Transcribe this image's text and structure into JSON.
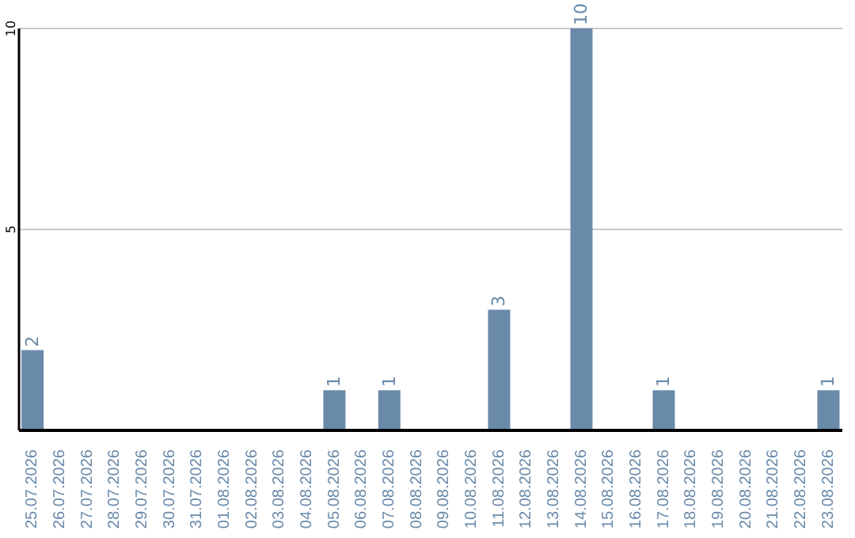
{
  "chart_data": {
    "type": "bar",
    "categories": [
      "25.07.2026",
      "26.07.2026",
      "27.07.2026",
      "28.07.2026",
      "29.07.2026",
      "30.07.2026",
      "31.07.2026",
      "01.08.2026",
      "02.08.2026",
      "03.08.2026",
      "04.08.2026",
      "05.08.2026",
      "06.08.2026",
      "07.08.2026",
      "08.08.2026",
      "09.08.2026",
      "10.08.2026",
      "11.08.2026",
      "12.08.2026",
      "13.08.2026",
      "14.08.2026",
      "15.08.2026",
      "16.08.2026",
      "17.08.2026",
      "18.08.2026",
      "19.08.2026",
      "20.08.2026",
      "21.08.2026",
      "22.08.2026",
      "23.08.2026"
    ],
    "values": [
      2,
      0,
      0,
      0,
      0,
      0,
      0,
      0,
      0,
      0,
      0,
      1,
      0,
      1,
      0,
      0,
      0,
      3,
      0,
      0,
      10,
      0,
      0,
      1,
      0,
      0,
      0,
      0,
      0,
      1
    ],
    "value_labels": [
      "2",
      null,
      null,
      null,
      null,
      null,
      null,
      null,
      null,
      null,
      null,
      "1",
      null,
      "1",
      null,
      null,
      null,
      "3",
      null,
      null,
      "10",
      null,
      null,
      "1",
      null,
      null,
      null,
      null,
      null,
      "1"
    ],
    "color": "#6a8aaa",
    "ylim": [
      0,
      10
    ],
    "yticks": [
      {
        "value": 0,
        "label": null
      },
      5,
      10
    ],
    "grid": "y"
  }
}
